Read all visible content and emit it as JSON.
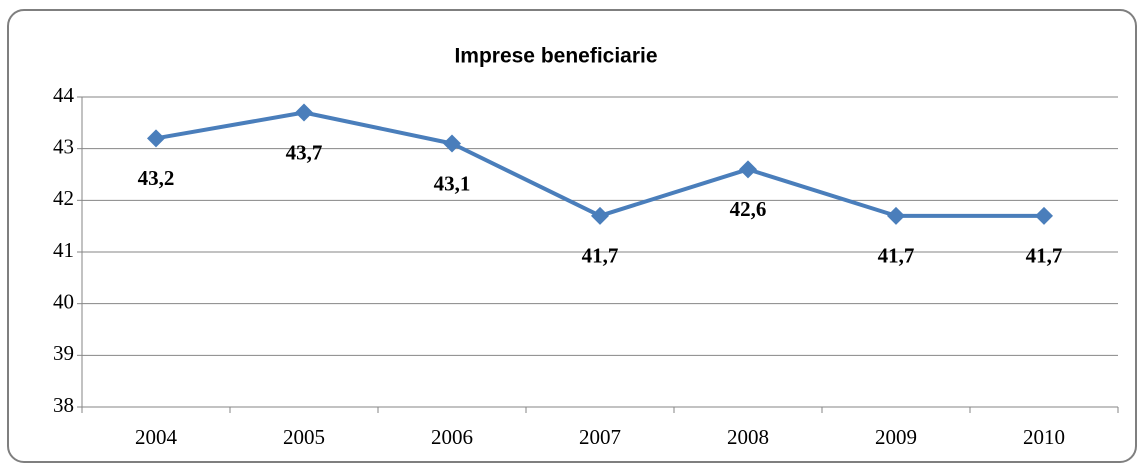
{
  "chart_data": {
    "type": "line",
    "title": "Imprese beneficiarie",
    "categories": [
      "2004",
      "2005",
      "2006",
      "2007",
      "2008",
      "2009",
      "2010"
    ],
    "values": [
      43.2,
      43.7,
      43.1,
      41.7,
      42.6,
      41.7,
      41.7
    ],
    "value_labels": [
      "43,2",
      "43,7",
      "43,1",
      "41,7",
      "42,6",
      "41,7",
      "41,7"
    ],
    "color": "#4a7ebb",
    "ylim": [
      38,
      44
    ],
    "yticks": [
      38,
      39,
      40,
      41,
      42,
      43,
      44
    ],
    "grid": true
  }
}
